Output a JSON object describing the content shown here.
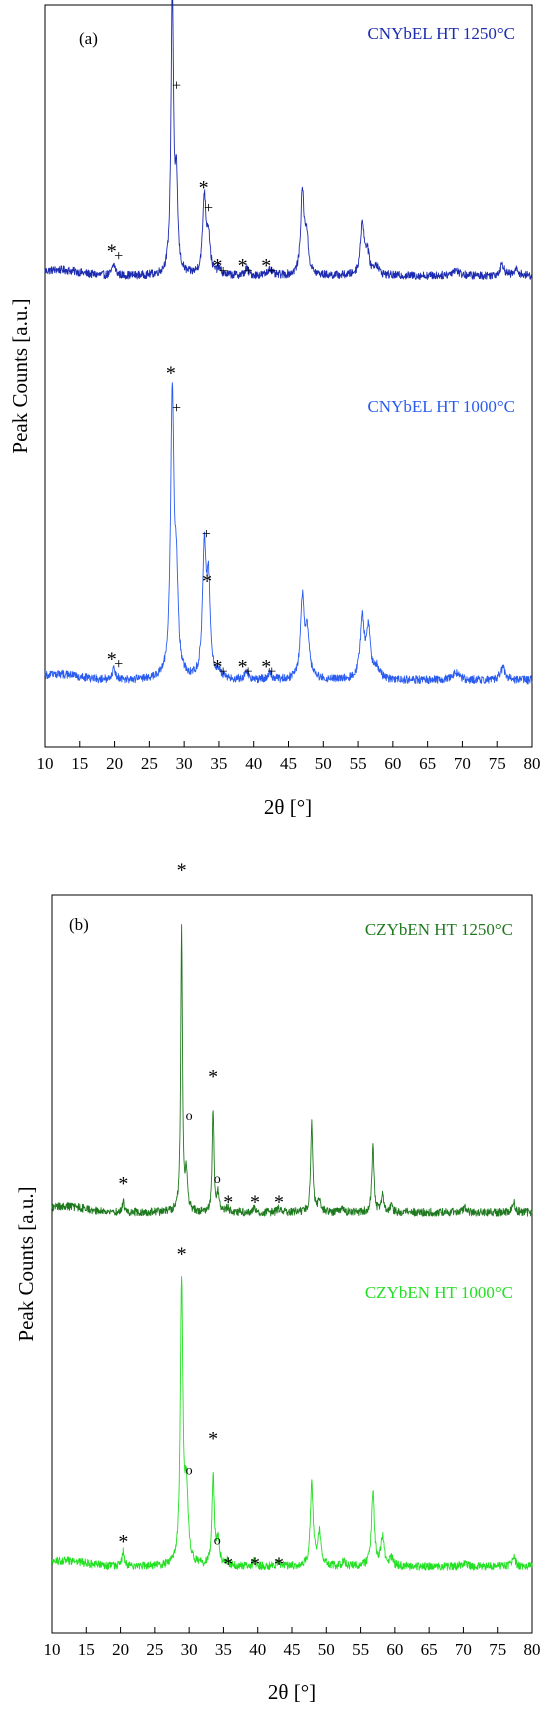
{
  "chart_data": [
    {
      "type": "line",
      "panel_label": "(a)",
      "xlabel": "2θ [°]",
      "ylabel": "Peak Counts [a.u.]",
      "xlim": [
        10,
        80
      ],
      "ylim": [
        0,
        100
      ],
      "x_ticks": [
        10,
        15,
        20,
        25,
        30,
        35,
        40,
        45,
        50,
        55,
        60,
        65,
        70,
        75,
        80
      ],
      "grid": false,
      "series": [
        {
          "name": "CNYbEL HT 1250°C",
          "color": "#1c2bb0",
          "base": 63.5,
          "peaks": [
            [
              19.9,
              1.5,
              0.28
            ],
            [
              28.3,
              38.5,
              0.22
            ],
            [
              28.9,
              11,
              0.22
            ],
            [
              32.9,
              10.5,
              0.28
            ],
            [
              33.5,
              5,
              0.28
            ],
            [
              35.0,
              0.8,
              0.3
            ],
            [
              39.0,
              0.9,
              0.3
            ],
            [
              42.3,
              1.0,
              0.3
            ],
            [
              47.0,
              11,
              0.28
            ],
            [
              47.6,
              5,
              0.3
            ],
            [
              55.6,
              7,
              0.3
            ],
            [
              56.3,
              3,
              0.35
            ],
            [
              57.6,
              1.3,
              0.4
            ],
            [
              69.0,
              0.8,
              0.6
            ],
            [
              75.7,
              1.6,
              0.35
            ],
            [
              77.8,
              0.8,
              0.4
            ]
          ]
        },
        {
          "name": "CNYbEL HT 1000°C",
          "color": "#2a5cf0",
          "base": 9.0,
          "peaks": [
            [
              19.9,
              1.5,
              0.3
            ],
            [
              28.3,
              38,
              0.3
            ],
            [
              28.9,
              11,
              0.28
            ],
            [
              32.9,
              17,
              0.3
            ],
            [
              33.5,
              12,
              0.3
            ],
            [
              35.0,
              1.0,
              0.3
            ],
            [
              39.0,
              1.0,
              0.3
            ],
            [
              42.3,
              1.0,
              0.3
            ],
            [
              47.0,
              10.5,
              0.32
            ],
            [
              47.7,
              6,
              0.35
            ],
            [
              55.6,
              8,
              0.35
            ],
            [
              56.5,
              6.5,
              0.35
            ],
            [
              57.7,
              1.5,
              0.45
            ],
            [
              69.0,
              1.0,
              0.6
            ],
            [
              75.8,
              1.6,
              0.45
            ]
          ]
        }
      ],
      "annotations": [
        {
          "text": "*",
          "x": 28.1,
          "y": 104
        },
        {
          "text": "+",
          "x": 28.9,
          "y": 88.5
        },
        {
          "text": "*",
          "x": 32.8,
          "y": 74.5
        },
        {
          "text": "+",
          "x": 33.5,
          "y": 72
        },
        {
          "text": "*",
          "x": 19.6,
          "y": 66
        },
        {
          "text": "+",
          "x": 20.6,
          "y": 65.5
        },
        {
          "text": "*",
          "x": 34.8,
          "y": 64
        },
        {
          "text": "+",
          "x": 35.6,
          "y": 63.5
        },
        {
          "text": "*",
          "x": 38.4,
          "y": 64
        },
        {
          "text": "+",
          "x": 39.2,
          "y": 63.5
        },
        {
          "text": "*",
          "x": 41.8,
          "y": 64
        },
        {
          "text": "+",
          "x": 42.6,
          "y": 63.5
        },
        {
          "text": "*",
          "x": 28.1,
          "y": 49.5
        },
        {
          "text": "+",
          "x": 28.9,
          "y": 45
        },
        {
          "text": "*",
          "x": 33.3,
          "y": 21.5
        },
        {
          "text": "+",
          "x": 33.2,
          "y": 28
        },
        {
          "text": "*",
          "x": 19.6,
          "y": 11
        },
        {
          "text": "+",
          "x": 20.6,
          "y": 10.5
        },
        {
          "text": "*",
          "x": 34.8,
          "y": 10
        },
        {
          "text": "+",
          "x": 35.6,
          "y": 9.5
        },
        {
          "text": "*",
          "x": 38.4,
          "y": 10
        },
        {
          "text": "+",
          "x": 39.2,
          "y": 9.5
        },
        {
          "text": "*",
          "x": 41.8,
          "y": 10
        },
        {
          "text": "+",
          "x": 42.6,
          "y": 9.5
        }
      ]
    },
    {
      "type": "line",
      "panel_label": "(b)",
      "xlabel": "2θ [°]",
      "ylabel": "Peak Counts [a.u.]",
      "xlim": [
        10,
        80
      ],
      "ylim": [
        0,
        100
      ],
      "x_ticks": [
        10,
        15,
        20,
        25,
        30,
        35,
        40,
        45,
        50,
        55,
        60,
        65,
        70,
        75,
        80
      ],
      "grid": false,
      "series": [
        {
          "name": "CZYbEN HT 1250°C",
          "color": "#1f7a1f",
          "base": 57.0,
          "peaks": [
            [
              20.4,
              1.5,
              0.15
            ],
            [
              28.9,
              38.5,
              0.15
            ],
            [
              29.6,
              5,
              0.2
            ],
            [
              33.5,
              14,
              0.15
            ],
            [
              34.2,
              2.5,
              0.2
            ],
            [
              35.6,
              0.6,
              0.2
            ],
            [
              39.5,
              0.6,
              0.2
            ],
            [
              43.0,
              0.6,
              0.2
            ],
            [
              47.9,
              12,
              0.18
            ],
            [
              49.0,
              1.8,
              0.2
            ],
            [
              52.5,
              0.5,
              0.25
            ],
            [
              56.8,
              9,
              0.18
            ],
            [
              58.2,
              2.2,
              0.2
            ],
            [
              59.5,
              1.0,
              0.2
            ],
            [
              70.2,
              0.8,
              0.3
            ],
            [
              77.3,
              1.5,
              0.22
            ]
          ]
        },
        {
          "name": "CZYbEN HT 1000°C",
          "color": "#22e022",
          "base": 9.0,
          "peaks": [
            [
              20.4,
              2.0,
              0.2
            ],
            [
              28.9,
              38,
              0.22
            ],
            [
              29.6,
              10,
              0.3
            ],
            [
              33.5,
              12,
              0.2
            ],
            [
              34.2,
              3.5,
              0.25
            ],
            [
              35.6,
              0.6,
              0.25
            ],
            [
              39.5,
              0.8,
              0.25
            ],
            [
              43.0,
              0.8,
              0.25
            ],
            [
              47.9,
              11,
              0.25
            ],
            [
              49.0,
              4.5,
              0.3
            ],
            [
              52.5,
              0.6,
              0.3
            ],
            [
              56.8,
              10,
              0.25
            ],
            [
              58.2,
              4,
              0.28
            ],
            [
              59.5,
              1.0,
              0.3
            ],
            [
              70.2,
              0.7,
              0.35
            ],
            [
              77.3,
              1.5,
              0.3
            ]
          ]
        }
      ],
      "annotations": [
        {
          "text": "*",
          "x": 28.9,
          "y": 102.5
        },
        {
          "text": "*",
          "x": 33.5,
          "y": 74.5
        },
        {
          "text": "o",
          "x": 30.0,
          "y": 69.5
        },
        {
          "text": "o",
          "x": 34.1,
          "y": 61
        },
        {
          "text": "*",
          "x": 20.4,
          "y": 60
        },
        {
          "text": "*",
          "x": 35.7,
          "y": 57.5
        },
        {
          "text": "*",
          "x": 39.6,
          "y": 57.5
        },
        {
          "text": "*",
          "x": 43.1,
          "y": 57.5
        },
        {
          "text": "*",
          "x": 28.9,
          "y": 50.5
        },
        {
          "text": "*",
          "x": 33.5,
          "y": 25.5
        },
        {
          "text": "o",
          "x": 30.0,
          "y": 21.5
        },
        {
          "text": "o",
          "x": 34.1,
          "y": 12
        },
        {
          "text": "*",
          "x": 20.4,
          "y": 11.5
        },
        {
          "text": "*",
          "x": 35.7,
          "y": 8.5
        },
        {
          "text": "*",
          "x": 39.6,
          "y": 8.5
        },
        {
          "text": "*",
          "x": 43.1,
          "y": 8.5
        }
      ]
    }
  ]
}
